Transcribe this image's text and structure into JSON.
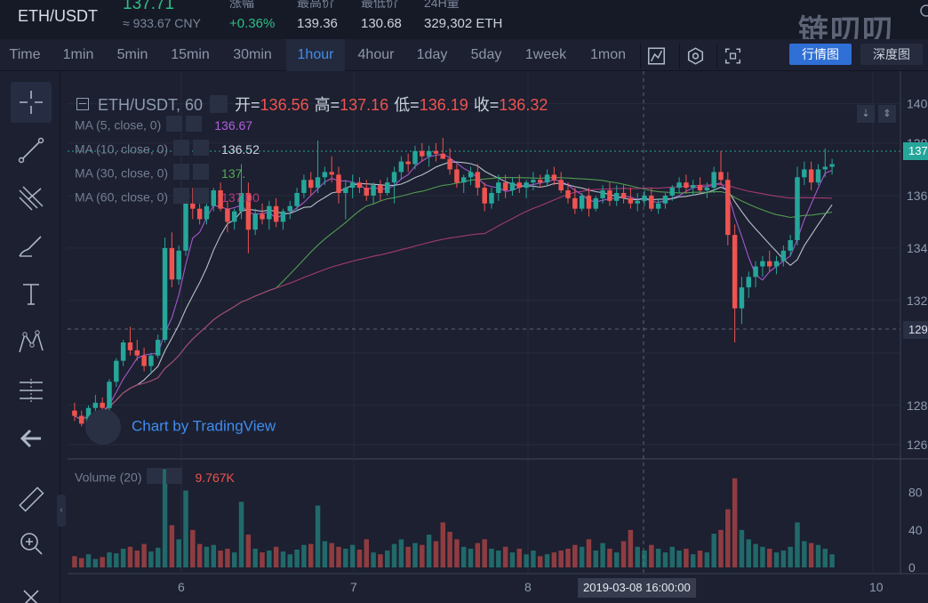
{
  "ticker": {
    "pair": "ETH/USDT",
    "last_price": "137.71",
    "cny_price": "≈ 933.67 CNY",
    "change": {
      "label": "涨幅",
      "value": "+0.36%"
    },
    "high": {
      "label": "最高价",
      "value": "139.36"
    },
    "low": {
      "label": "最低价",
      "value": "130.68"
    },
    "volume": {
      "label": "24H量",
      "value": "329,302 ETH"
    },
    "brand": "链叨叨"
  },
  "toolbar": {
    "timeframes": [
      "Time",
      "1min",
      "5min",
      "15min",
      "30min",
      "1hour",
      "4hour",
      "1day",
      "5day",
      "1week",
      "1mon"
    ],
    "active_timeframe": "1hour",
    "icons": [
      "chart-type-icon",
      "settings-hex-icon",
      "fullscreen-icon"
    ],
    "view_buttons": {
      "kline": "行情图",
      "depth": "深度图"
    }
  },
  "left_tools": [
    "crosshair-icon",
    "trend-line-icon",
    "pitchfork-icon",
    "brush-icon",
    "text-tool-icon",
    "pattern-icon",
    "fib-levels-icon",
    "back-arrow-icon",
    "ruler-icon",
    "zoom-in-icon",
    "close-x-icon"
  ],
  "legend": {
    "symbol": "ETH/USDT, 60",
    "open_label": "开=",
    "open": "136.56",
    "high_label": "高=",
    "high": "137.16",
    "low_label": "低=",
    "low": "136.19",
    "close_label": "收=",
    "close": "136.32"
  },
  "ma": [
    {
      "label": "MA (5, close, 0)",
      "value": "136.67",
      "color": "#b45ee0"
    },
    {
      "label": "MA (10, close, 0)",
      "value": "136.52",
      "color": "#c9d1dc"
    },
    {
      "label": "MA (30, close, 0)",
      "value": "137.",
      "color": "#59a956"
    },
    {
      "label": "MA (60, close, 0)",
      "value": "137.00",
      "color": "#b43c7c"
    }
  ],
  "volume_legend": {
    "label": "Volume (20)",
    "value": "9.767K"
  },
  "watermark": "Chart by TradingView",
  "price_axis": {
    "tick_labels": [
      "140",
      "138",
      "136",
      "134",
      "132",
      "129",
      "128",
      "126"
    ],
    "last_price_tag": "137",
    "crosshair_price_tag": "129"
  },
  "volume_axis": {
    "tick_labels": [
      "80",
      "40",
      "0"
    ]
  },
  "time_axis": {
    "tick_labels": [
      "6",
      "7",
      "8",
      "10"
    ],
    "crosshair_time": "2019-03-08 16:00:00"
  },
  "colors": {
    "up": "#26a69a",
    "down": "#ef5350",
    "accent": "#3f8cf0",
    "background": "#1c2030"
  },
  "chart_data": {
    "type": "candlestick",
    "interval": "1hour",
    "ylim": [
      127,
      140.5
    ],
    "volume_ylim": [
      0,
      110
    ],
    "candles": [
      [
        128.3,
        128.6,
        127.9,
        128.1,
        12
      ],
      [
        128.1,
        128.3,
        127.7,
        127.8,
        10
      ],
      [
        127.8,
        128.5,
        127.7,
        128.4,
        14
      ],
      [
        128.4,
        128.9,
        128.2,
        128.6,
        9
      ],
      [
        128.6,
        128.8,
        128.2,
        128.4,
        11
      ],
      [
        128.4,
        129.5,
        128.3,
        129.4,
        16
      ],
      [
        129.4,
        130.3,
        129.2,
        130.2,
        15
      ],
      [
        130.2,
        131.0,
        130.0,
        130.9,
        20
      ],
      [
        130.9,
        131.5,
        130.4,
        130.6,
        22
      ],
      [
        130.6,
        131.0,
        130.2,
        130.4,
        18
      ],
      [
        130.4,
        130.7,
        129.8,
        130.0,
        25
      ],
      [
        130.0,
        130.5,
        129.7,
        130.4,
        17
      ],
      [
        130.4,
        131.2,
        130.3,
        131.0,
        21
      ],
      [
        131.0,
        134.9,
        130.9,
        134.5,
        105
      ],
      [
        134.5,
        135.1,
        133.0,
        133.3,
        45
      ],
      [
        133.3,
        134.6,
        133.1,
        134.4,
        30
      ],
      [
        134.4,
        136.6,
        134.2,
        136.2,
        82
      ],
      [
        136.2,
        136.8,
        135.6,
        136.0,
        40
      ],
      [
        136.0,
        136.4,
        135.4,
        135.6,
        25
      ],
      [
        135.6,
        136.3,
        135.4,
        136.1,
        22
      ],
      [
        136.1,
        136.8,
        135.9,
        136.7,
        24
      ],
      [
        136.7,
        137.0,
        135.9,
        136.0,
        18
      ],
      [
        136.0,
        136.3,
        135.1,
        135.5,
        20
      ],
      [
        135.5,
        136.0,
        135.2,
        135.9,
        16
      ],
      [
        135.9,
        137.7,
        135.6,
        136.6,
        70
      ],
      [
        136.6,
        137.0,
        134.3,
        135.2,
        35
      ],
      [
        135.2,
        136.0,
        135.0,
        135.8,
        20
      ],
      [
        135.8,
        136.2,
        135.4,
        135.6,
        16
      ],
      [
        135.6,
        136.3,
        135.2,
        136.1,
        18
      ],
      [
        136.1,
        136.4,
        135.3,
        135.5,
        22
      ],
      [
        135.5,
        136.0,
        135.2,
        135.9,
        17
      ],
      [
        135.9,
        136.3,
        135.6,
        136.1,
        14
      ],
      [
        136.1,
        136.8,
        135.9,
        136.6,
        19
      ],
      [
        136.6,
        137.3,
        136.4,
        137.1,
        24
      ],
      [
        137.1,
        137.4,
        136.5,
        136.8,
        25
      ],
      [
        136.8,
        138.6,
        136.6,
        137.2,
        66
      ],
      [
        137.2,
        137.6,
        136.9,
        137.4,
        28
      ],
      [
        137.4,
        138.0,
        137.0,
        137.3,
        26
      ],
      [
        137.3,
        137.6,
        136.2,
        136.6,
        22
      ],
      [
        136.6,
        137.1,
        135.6,
        136.8,
        20
      ],
      [
        136.8,
        137.3,
        136.4,
        137.0,
        24
      ],
      [
        137.0,
        137.2,
        136.6,
        136.8,
        19
      ],
      [
        136.8,
        137.1,
        136.3,
        136.5,
        30
      ],
      [
        136.5,
        137.0,
        136.2,
        136.9,
        16
      ],
      [
        136.9,
        137.1,
        136.3,
        136.6,
        14
      ],
      [
        136.6,
        137.2,
        136.5,
        137.0,
        18
      ],
      [
        137.0,
        137.6,
        136.2,
        137.4,
        25
      ],
      [
        137.4,
        138.0,
        137.1,
        137.8,
        30
      ],
      [
        137.8,
        138.1,
        137.4,
        137.7,
        22
      ],
      [
        137.7,
        138.4,
        137.5,
        138.2,
        26
      ],
      [
        138.2,
        138.5,
        137.8,
        138.0,
        24
      ],
      [
        138.0,
        138.4,
        137.6,
        138.2,
        35
      ],
      [
        138.2,
        138.5,
        137.8,
        138.1,
        28
      ],
      [
        138.1,
        138.7,
        137.9,
        137.9,
        48
      ],
      [
        137.9,
        138.3,
        137.3,
        137.5,
        38
      ],
      [
        137.5,
        137.7,
        136.8,
        137.0,
        30
      ],
      [
        137.0,
        137.3,
        136.6,
        137.2,
        22
      ],
      [
        137.2,
        137.6,
        136.9,
        137.4,
        20
      ],
      [
        137.4,
        137.7,
        136.5,
        136.8,
        26
      ],
      [
        136.8,
        137.0,
        135.9,
        136.2,
        30
      ],
      [
        136.2,
        136.8,
        136.0,
        136.6,
        20
      ],
      [
        136.6,
        137.3,
        136.3,
        137.0,
        18
      ],
      [
        137.0,
        137.3,
        136.4,
        136.7,
        22
      ],
      [
        136.7,
        137.2,
        136.5,
        137.0,
        16
      ],
      [
        137.0,
        137.3,
        136.6,
        136.8,
        20
      ],
      [
        136.8,
        137.1,
        136.4,
        137.0,
        14
      ],
      [
        137.0,
        137.4,
        136.7,
        137.1,
        18
      ],
      [
        137.1,
        137.3,
        136.8,
        137.0,
        12
      ],
      [
        137.0,
        137.5,
        136.9,
        137.3,
        14
      ],
      [
        137.3,
        137.6,
        136.9,
        137.1,
        16
      ],
      [
        137.1,
        137.4,
        136.6,
        136.7,
        18
      ],
      [
        136.7,
        137.0,
        136.2,
        136.4,
        20
      ],
      [
        136.4,
        136.8,
        135.8,
        136.0,
        24
      ],
      [
        136.0,
        136.6,
        135.9,
        136.5,
        22
      ],
      [
        136.5,
        136.8,
        135.7,
        136.0,
        30
      ],
      [
        136.0,
        136.5,
        135.9,
        136.4,
        18
      ],
      [
        136.4,
        136.9,
        136.2,
        136.7,
        26
      ],
      [
        136.7,
        137.0,
        136.1,
        136.3,
        20
      ],
      [
        136.3,
        136.9,
        136.1,
        136.6,
        16
      ],
      [
        136.6,
        136.9,
        136.2,
        136.4,
        28
      ],
      [
        136.4,
        136.8,
        136.0,
        136.2,
        40
      ],
      [
        136.2,
        136.6,
        135.9,
        136.3,
        22
      ],
      [
        136.3,
        136.7,
        136.1,
        136.5,
        18
      ],
      [
        136.5,
        136.8,
        135.9,
        136.0,
        24
      ],
      [
        136.0,
        136.4,
        135.8,
        136.2,
        20
      ],
      [
        136.2,
        136.6,
        136.0,
        136.5,
        16
      ],
      [
        136.5,
        136.9,
        136.3,
        136.8,
        22
      ],
      [
        136.8,
        137.2,
        136.6,
        137.0,
        18
      ],
      [
        137.0,
        137.3,
        136.6,
        136.8,
        20
      ],
      [
        136.8,
        137.1,
        136.5,
        136.9,
        14
      ],
      [
        136.9,
        137.2,
        136.6,
        136.7,
        18
      ],
      [
        136.7,
        137.0,
        136.4,
        136.8,
        16
      ],
      [
        136.8,
        137.6,
        136.6,
        137.4,
        36
      ],
      [
        137.4,
        138.2,
        136.9,
        137.1,
        40
      ],
      [
        137.1,
        137.4,
        134.6,
        135.0,
        62
      ],
      [
        135.0,
        135.4,
        130.9,
        132.2,
        95
      ],
      [
        132.2,
        133.4,
        131.6,
        133.0,
        40
      ],
      [
        133.0,
        133.6,
        132.6,
        133.4,
        30
      ],
      [
        133.4,
        134.0,
        133.0,
        133.8,
        25
      ],
      [
        133.8,
        134.2,
        133.4,
        134.0,
        22
      ],
      [
        134.0,
        134.4,
        133.6,
        133.8,
        20
      ],
      [
        133.8,
        134.2,
        133.5,
        134.0,
        16
      ],
      [
        134.0,
        134.6,
        133.8,
        134.4,
        18
      ],
      [
        134.4,
        135.0,
        134.2,
        134.8,
        22
      ],
      [
        134.8,
        137.6,
        134.6,
        137.2,
        48
      ],
      [
        137.2,
        137.8,
        136.9,
        137.5,
        28
      ],
      [
        137.5,
        137.8,
        136.7,
        137.0,
        26
      ],
      [
        137.0,
        137.7,
        136.9,
        137.5,
        24
      ],
      [
        137.5,
        138.3,
        137.2,
        137.6,
        20
      ],
      [
        137.6,
        137.9,
        137.3,
        137.7,
        14
      ]
    ]
  }
}
